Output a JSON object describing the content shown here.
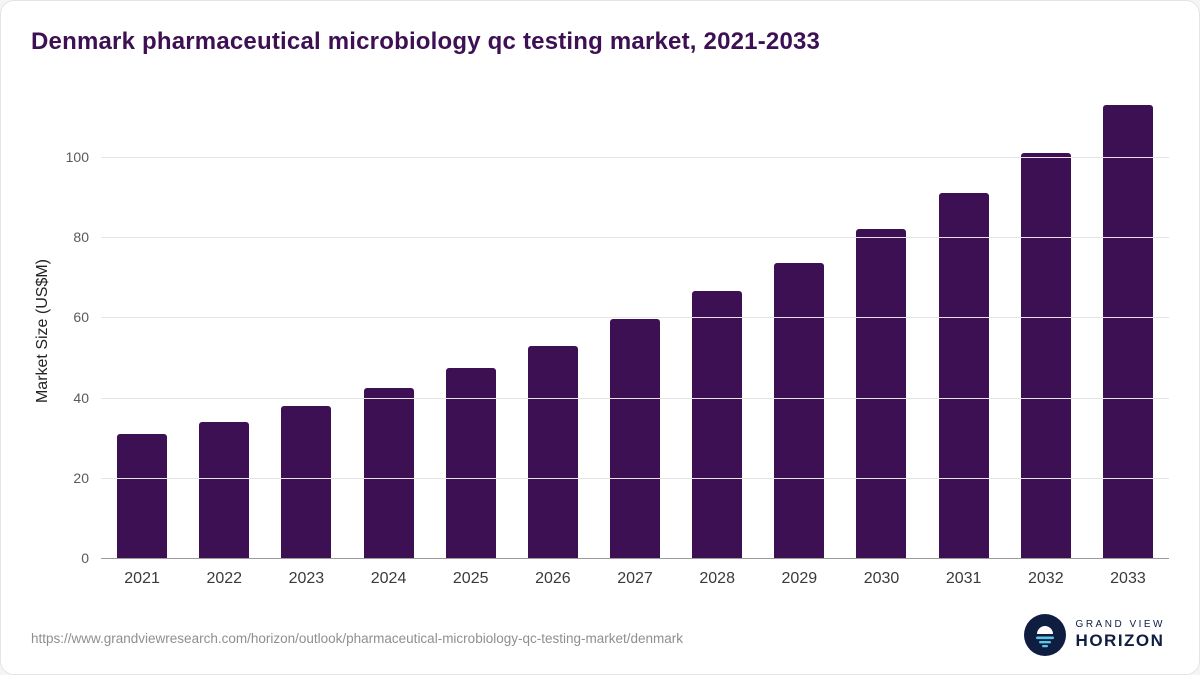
{
  "header": {
    "title": "Denmark pharmaceutical microbiology qc testing market, 2021-2033"
  },
  "chart_data": {
    "type": "bar",
    "title": "Denmark pharmaceutical microbiology qc testing market, 2021-2033",
    "categories": [
      "2021",
      "2022",
      "2023",
      "2024",
      "2025",
      "2026",
      "2027",
      "2028",
      "2029",
      "2030",
      "2031",
      "2032",
      "2033"
    ],
    "values": [
      31,
      34,
      38,
      42.5,
      47.5,
      53,
      59.5,
      66.5,
      73.5,
      82,
      91,
      101,
      113
    ],
    "xlabel": "",
    "ylabel": "Market Size (US$M)",
    "ylim": [
      0,
      114
    ],
    "yticks": [
      0,
      20,
      40,
      60,
      80,
      100
    ],
    "grid": "horizontal",
    "legend": "none",
    "bar_color": "#3d1053"
  },
  "footer": {
    "source_url": "https://www.grandviewresearch.com/horizon/outlook/pharmaceutical-microbiology-qc-testing-market/denmark",
    "logo": {
      "line1": "GRAND VIEW",
      "line2": "HORIZON"
    }
  },
  "colors": {
    "accent_purple": "#3d1053",
    "bar_color": "#3d1053",
    "grid_gray": "#e4e4e4",
    "axis_gray": "#9b9b9b",
    "logo_navy": "#0f1d40",
    "logo_blue": "#5bc6ea"
  }
}
